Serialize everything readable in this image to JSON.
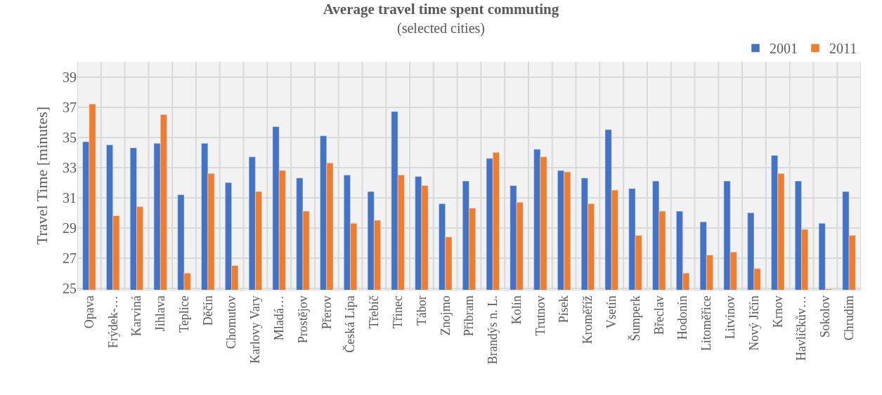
{
  "chart_data": {
    "type": "bar",
    "title": "Average travel time spent commuting",
    "subtitle": "(selected cities)",
    "ylabel": "Travel Time [minutes]",
    "categories": [
      "Opava",
      "Frýdek-…",
      "Karviná",
      "Jihlava",
      "Teplice",
      "Děčín",
      "Chomutov",
      "Karlovy Vary",
      "Mladá…",
      "Prostějov",
      "Přerov",
      "Česká Lípa",
      "Třebíč",
      "Třinec",
      "Tábor",
      "Znojmo",
      "Příbram",
      "Brandýs n. L.",
      "Kolín",
      "Trutnov",
      "Písek",
      "Kroměříž",
      "Vsetín",
      "Šumperk",
      "Břeclav",
      "Hodonín",
      "Litoměřice",
      "Litvínov",
      "Nový Jičín",
      "Krnov",
      "Havlíčkův…",
      "Sokolov",
      "Chrudim"
    ],
    "series": [
      {
        "name": "2001",
        "color": "#4472c4",
        "values": [
          34.7,
          34.5,
          34.3,
          34.6,
          31.2,
          34.6,
          32.0,
          33.7,
          35.7,
          32.3,
          35.1,
          32.5,
          31.4,
          36.7,
          32.4,
          30.6,
          32.1,
          33.6,
          31.8,
          34.2,
          32.8,
          32.3,
          35.5,
          31.6,
          32.1,
          30.1,
          29.4,
          32.1,
          30.0,
          33.8,
          32.1,
          29.3,
          31.4
        ]
      },
      {
        "name": "2011",
        "color": "#ed7d31",
        "values": [
          37.2,
          29.8,
          30.4,
          36.5,
          26.0,
          32.6,
          26.5,
          31.4,
          32.8,
          30.1,
          33.3,
          29.3,
          29.5,
          32.5,
          31.8,
          28.4,
          30.3,
          34.0,
          30.7,
          33.7,
          32.7,
          30.6,
          31.5,
          28.5,
          30.1,
          26.0,
          27.2,
          27.4,
          26.3,
          32.6,
          28.9,
          24.95,
          28.5
        ]
      }
    ],
    "ylim": [
      24.9,
      40
    ],
    "yticks": [
      25,
      27,
      29,
      31,
      33,
      35,
      37,
      39
    ],
    "grid": true,
    "legend": "top right"
  }
}
